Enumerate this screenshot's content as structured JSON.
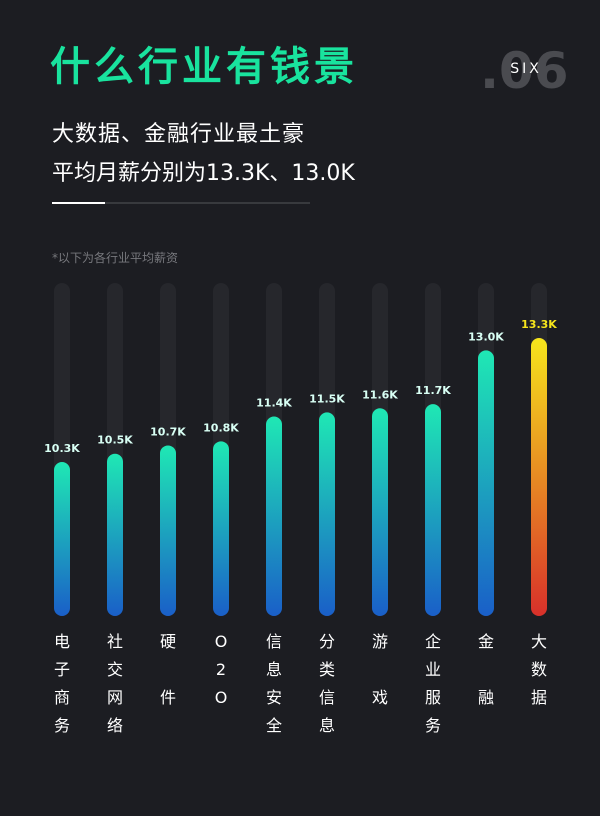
{
  "chart_data": {
    "type": "bar",
    "title": "什么行业有钱景",
    "badge_number": ".06",
    "badge_text": "SIX",
    "subtitle": [
      "大数据、金融行业最土豪",
      "平均月薪分别为13.3K、13.0K"
    ],
    "note": "*以下为各行业平均薪资",
    "categories": [
      "电子商务",
      "社交网络",
      "硬件",
      "O2O",
      "信息安全",
      "分类信息",
      "游戏",
      "企业服务",
      "金融",
      "大数据"
    ],
    "values": [
      10.3,
      10.5,
      10.7,
      10.8,
      11.4,
      11.5,
      11.6,
      11.7,
      13.0,
      13.3
    ],
    "value_labels": [
      "10.3K",
      "10.5K",
      "10.7K",
      "10.8K",
      "11.4K",
      "11.5K",
      "11.6K",
      "11.7K",
      "13.0K",
      "13.3K"
    ],
    "bar_colors": [
      [
        "#1fe8b4",
        "#1a5fc8"
      ],
      [
        "#1fe8b4",
        "#1a5fc8"
      ],
      [
        "#1fe8b4",
        "#1a5fc8"
      ],
      [
        "#1fe8b4",
        "#1a5fc8"
      ],
      [
        "#1fe8b4",
        "#1a5fc8"
      ],
      [
        "#1fe8b4",
        "#1a5fc8"
      ],
      [
        "#1fe8b4",
        "#1a5fc8"
      ],
      [
        "#1fe8b4",
        "#1a5fc8"
      ],
      [
        "#1fe8b4",
        "#1a5fc8"
      ],
      [
        "#f6e51c",
        "#d8302a"
      ]
    ],
    "label_colors": [
      "#d8fff4",
      "#d8fff4",
      "#d8fff4",
      "#d8fff4",
      "#d8fff4",
      "#d8fff4",
      "#d8fff4",
      "#d8fff4",
      "#d8fff4",
      "#f6e51c"
    ]
  }
}
